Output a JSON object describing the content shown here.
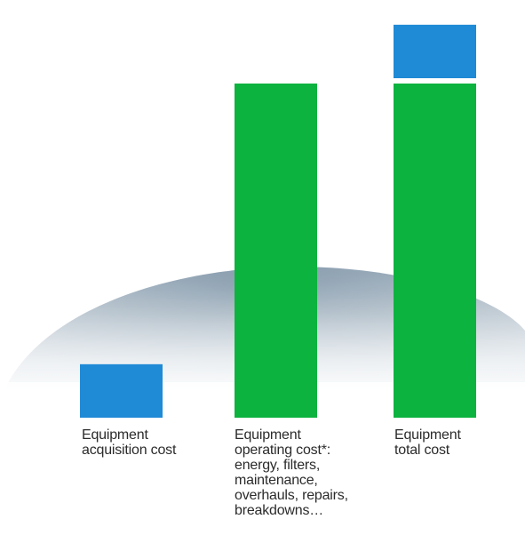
{
  "chart_data": {
    "type": "bar",
    "stacked": true,
    "categories": [
      "Equipment\nacquisition cost",
      "Equipment\noperating cost*:\nenergy, filters,\nmaintenance,\noverhauls, repairs,\nbreakdowns…",
      "Equipment\ntotal cost"
    ],
    "segments": [
      {
        "category": 0,
        "part": "acquisition",
        "value": 16,
        "color": "#1f8ad6"
      },
      {
        "category": 1,
        "part": "operating",
        "value": 100,
        "color": "#0cb33f"
      },
      {
        "category": 2,
        "part": "operating",
        "value": 100,
        "color": "#0cb33f"
      },
      {
        "category": 2,
        "part": "acquisition",
        "value": 16,
        "color": "#1f8ad6"
      }
    ],
    "ylim": [
      0,
      125
    ],
    "title": "",
    "xlabel": "",
    "ylabel": "",
    "grid": false,
    "legend": false
  }
}
